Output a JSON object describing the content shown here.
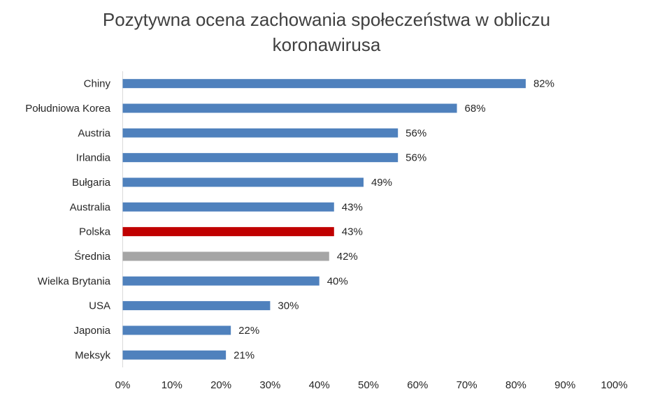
{
  "chart_data": {
    "type": "bar",
    "orientation": "horizontal",
    "title_lines": [
      "Pozytywna ocena zachowania społeczeństwa w obliczu",
      "koronawirusa"
    ],
    "categories": [
      "Chiny",
      "Południowa Korea",
      "Austria",
      "Irlandia",
      "Bułgaria",
      "Australia",
      "Polska",
      "Średnia",
      "Wielka Brytania",
      "USA",
      "Japonia",
      "Meksyk"
    ],
    "values": [
      82,
      68,
      56,
      56,
      49,
      43,
      43,
      42,
      40,
      30,
      22,
      21
    ],
    "data_labels": [
      "82%",
      "68%",
      "56%",
      "56%",
      "49%",
      "43%",
      "43%",
      "42%",
      "40%",
      "30%",
      "22%",
      "21%"
    ],
    "bar_colors": [
      "#4f81bd",
      "#4f81bd",
      "#4f81bd",
      "#4f81bd",
      "#4f81bd",
      "#4f81bd",
      "#c00000",
      "#a5a5a5",
      "#4f81bd",
      "#4f81bd",
      "#4f81bd",
      "#4f81bd"
    ],
    "xlim": [
      0,
      100
    ],
    "x_ticks": [
      0,
      10,
      20,
      30,
      40,
      50,
      60,
      70,
      80,
      90,
      100
    ],
    "x_tick_labels": [
      "0%",
      "10%",
      "20%",
      "30%",
      "40%",
      "50%",
      "60%",
      "70%",
      "80%",
      "90%",
      "100%"
    ],
    "xlabel": "",
    "ylabel": "",
    "grid": false,
    "legend": "none"
  }
}
